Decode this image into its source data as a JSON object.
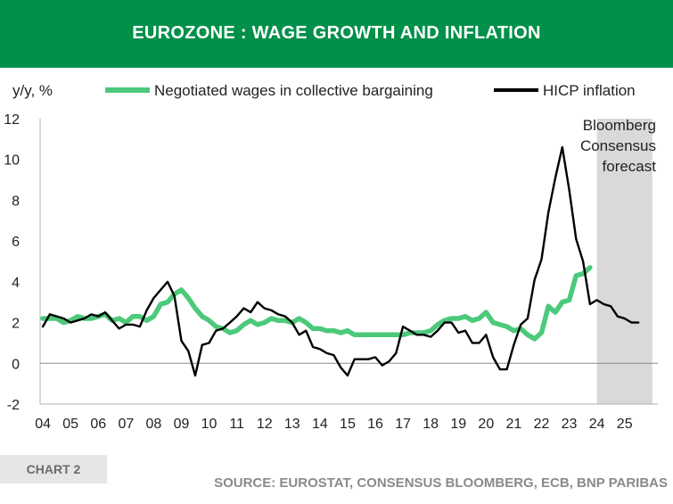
{
  "header": {
    "title": "EUROZONE : WAGE GROWTH AND INFLATION"
  },
  "footer": {
    "badge": "CHART 2",
    "source": "SOURCE: EUROSTAT, CONSENSUS BLOOMBERG, ECB, BNP PARIBAS"
  },
  "colors": {
    "brand": "#00904a",
    "wages": "#4cc97a",
    "inflation": "#000000",
    "forecast_shade": "#d9d9d9"
  },
  "chart_data": {
    "type": "line",
    "title": "EUROZONE : WAGE GROWTH AND INFLATION",
    "ylabel": "y/y, %",
    "xlabel": "",
    "ylim": [
      -2,
      12
    ],
    "y_ticks": [
      "-2",
      "0",
      "2",
      "4",
      "6",
      "8",
      "10",
      "12"
    ],
    "x_range": [
      2003.9,
      2026.2
    ],
    "x_ticks": [
      "04",
      "05",
      "06",
      "07",
      "08",
      "09",
      "10",
      "11",
      "12",
      "13",
      "14",
      "15",
      "16",
      "17",
      "18",
      "19",
      "20",
      "21",
      "22",
      "23",
      "24",
      "25"
    ],
    "zero_line": true,
    "forecast": {
      "label_lines": [
        "Bloomberg",
        "Consensus",
        "forecast"
      ],
      "start": 2024.0,
      "end": 2026.0
    },
    "legend": [
      "Negotiated wages in collective bargaining",
      "HICP inflation"
    ],
    "series": [
      {
        "name": "Negotiated wages in collective bargaining",
        "x": [
          2004.0,
          2004.5,
          2004.75,
          2005.0,
          2005.25,
          2005.5,
          2005.75,
          2006.0,
          2006.25,
          2006.5,
          2006.75,
          2007.0,
          2007.25,
          2007.5,
          2007.75,
          2008.0,
          2008.25,
          2008.5,
          2008.75,
          2009.0,
          2009.25,
          2009.5,
          2009.75,
          2010.0,
          2010.25,
          2010.5,
          2010.75,
          2011.0,
          2011.25,
          2011.5,
          2011.75,
          2012.0,
          2012.25,
          2012.5,
          2012.75,
          2013.0,
          2013.25,
          2013.5,
          2013.75,
          2014.0,
          2014.25,
          2014.5,
          2014.75,
          2015.0,
          2015.25,
          2015.5,
          2015.75,
          2016.0,
          2016.25,
          2016.5,
          2016.75,
          2017.0,
          2017.25,
          2017.5,
          2017.75,
          2018.0,
          2018.25,
          2018.5,
          2018.75,
          2019.0,
          2019.25,
          2019.5,
          2019.75,
          2020.0,
          2020.25,
          2020.5,
          2020.75,
          2021.0,
          2021.25,
          2021.5,
          2021.75,
          2022.0,
          2022.25,
          2022.5,
          2022.75,
          2023.0,
          2023.25,
          2023.5,
          2023.75
        ],
        "values": [
          2.2,
          2.2,
          2.0,
          2.1,
          2.3,
          2.2,
          2.2,
          2.3,
          2.4,
          2.1,
          2.2,
          2.0,
          2.3,
          2.3,
          2.1,
          2.3,
          2.9,
          3.0,
          3.4,
          3.6,
          3.2,
          2.7,
          2.3,
          2.1,
          1.8,
          1.7,
          1.5,
          1.6,
          1.9,
          2.1,
          1.9,
          2.0,
          2.2,
          2.1,
          2.1,
          2.0,
          2.2,
          2.0,
          1.7,
          1.7,
          1.6,
          1.6,
          1.5,
          1.6,
          1.4,
          1.4,
          1.4,
          1.4,
          1.4,
          1.4,
          1.4,
          1.4,
          1.5,
          1.5,
          1.5,
          1.6,
          1.9,
          2.1,
          2.2,
          2.2,
          2.3,
          2.1,
          2.2,
          2.5,
          2.0,
          1.9,
          1.8,
          1.6,
          1.7,
          1.4,
          1.2,
          1.5,
          2.8,
          2.5,
          3.0,
          3.1,
          4.3,
          4.4,
          4.7
        ]
      },
      {
        "name": "HICP inflation",
        "x": [
          2004.0,
          2004.25,
          2004.5,
          2004.75,
          2005.0,
          2005.25,
          2005.5,
          2005.75,
          2006.0,
          2006.25,
          2006.5,
          2006.75,
          2007.0,
          2007.25,
          2007.5,
          2007.75,
          2008.0,
          2008.25,
          2008.5,
          2008.75,
          2009.0,
          2009.25,
          2009.5,
          2009.75,
          2010.0,
          2010.25,
          2010.5,
          2010.75,
          2011.0,
          2011.25,
          2011.5,
          2011.75,
          2012.0,
          2012.25,
          2012.5,
          2012.75,
          2013.0,
          2013.25,
          2013.5,
          2013.75,
          2014.0,
          2014.25,
          2014.5,
          2014.75,
          2015.0,
          2015.25,
          2015.5,
          2015.75,
          2016.0,
          2016.25,
          2016.5,
          2016.75,
          2017.0,
          2017.25,
          2017.5,
          2017.75,
          2018.0,
          2018.25,
          2018.5,
          2018.75,
          2019.0,
          2019.25,
          2019.5,
          2019.75,
          2020.0,
          2020.25,
          2020.5,
          2020.75,
          2021.0,
          2021.25,
          2021.5,
          2021.75,
          2022.0,
          2022.25,
          2022.5,
          2022.75,
          2023.0,
          2023.25,
          2023.5,
          2023.75,
          2024.0,
          2024.25,
          2024.5,
          2024.75,
          2025.0,
          2025.25,
          2025.5
        ],
        "values": [
          1.8,
          2.4,
          2.3,
          2.2,
          2.0,
          2.1,
          2.2,
          2.4,
          2.3,
          2.5,
          2.1,
          1.7,
          1.9,
          1.9,
          1.8,
          2.6,
          3.2,
          3.6,
          4.0,
          3.3,
          1.1,
          0.6,
          -0.6,
          0.9,
          1.0,
          1.6,
          1.7,
          2.0,
          2.3,
          2.7,
          2.5,
          3.0,
          2.7,
          2.6,
          2.4,
          2.3,
          2.0,
          1.4,
          1.6,
          0.8,
          0.7,
          0.5,
          0.4,
          -0.2,
          -0.6,
          0.2,
          0.2,
          0.2,
          0.3,
          -0.1,
          0.1,
          0.5,
          1.8,
          1.6,
          1.4,
          1.4,
          1.3,
          1.6,
          2.0,
          2.0,
          1.5,
          1.6,
          1.0,
          1.0,
          1.4,
          0.3,
          -0.3,
          -0.3,
          0.9,
          1.9,
          2.2,
          4.1,
          5.1,
          7.4,
          9.1,
          10.6,
          8.5,
          6.1,
          5.0,
          2.9,
          3.1,
          2.9,
          2.8,
          2.3,
          2.2,
          2.0,
          2.0
        ]
      }
    ]
  }
}
